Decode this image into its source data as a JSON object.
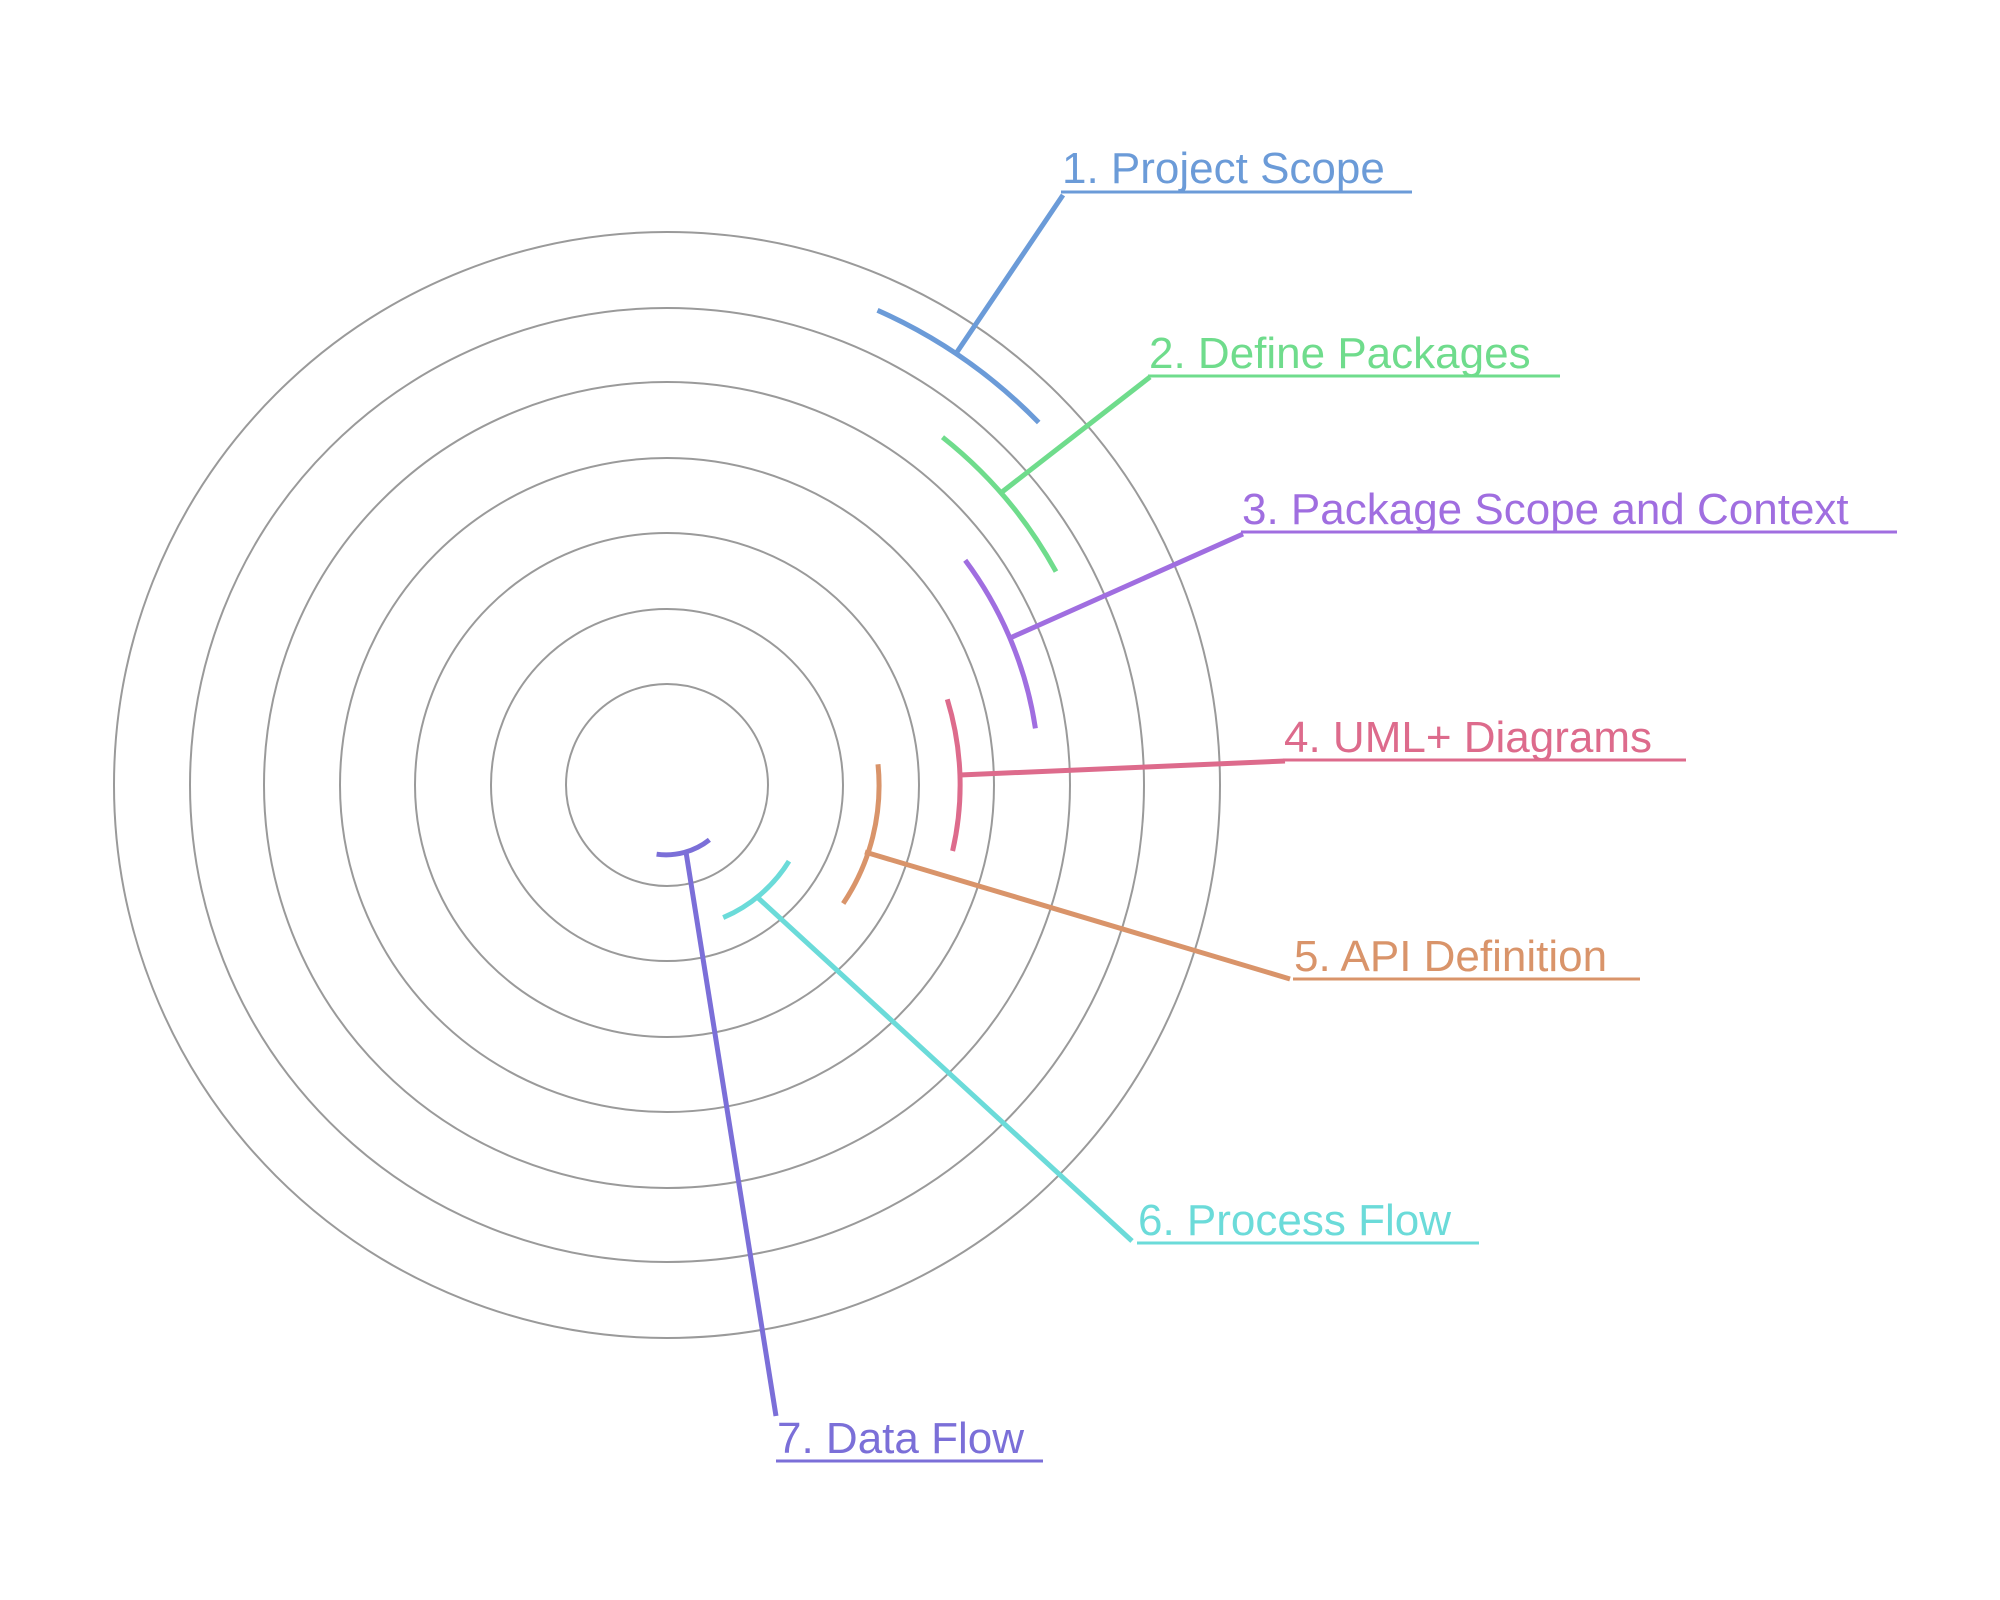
{
  "steps": [
    {
      "label": "1. Project Scope",
      "color": "#6b9bd8"
    },
    {
      "label": "2. Define Packages",
      "color": "#6fdc8c"
    },
    {
      "label": "3. Package Scope and Context",
      "color": "#a06ee0"
    },
    {
      "label": "4. UML+ Diagrams",
      "color": "#dd6b8c"
    },
    {
      "label": "5. API Definition",
      "color": "#d9946a"
    },
    {
      "label": "6. Process Flow",
      "color": "#6bdbd9"
    },
    {
      "label": "7. Data Flow",
      "color": "#7b6fd8"
    }
  ]
}
